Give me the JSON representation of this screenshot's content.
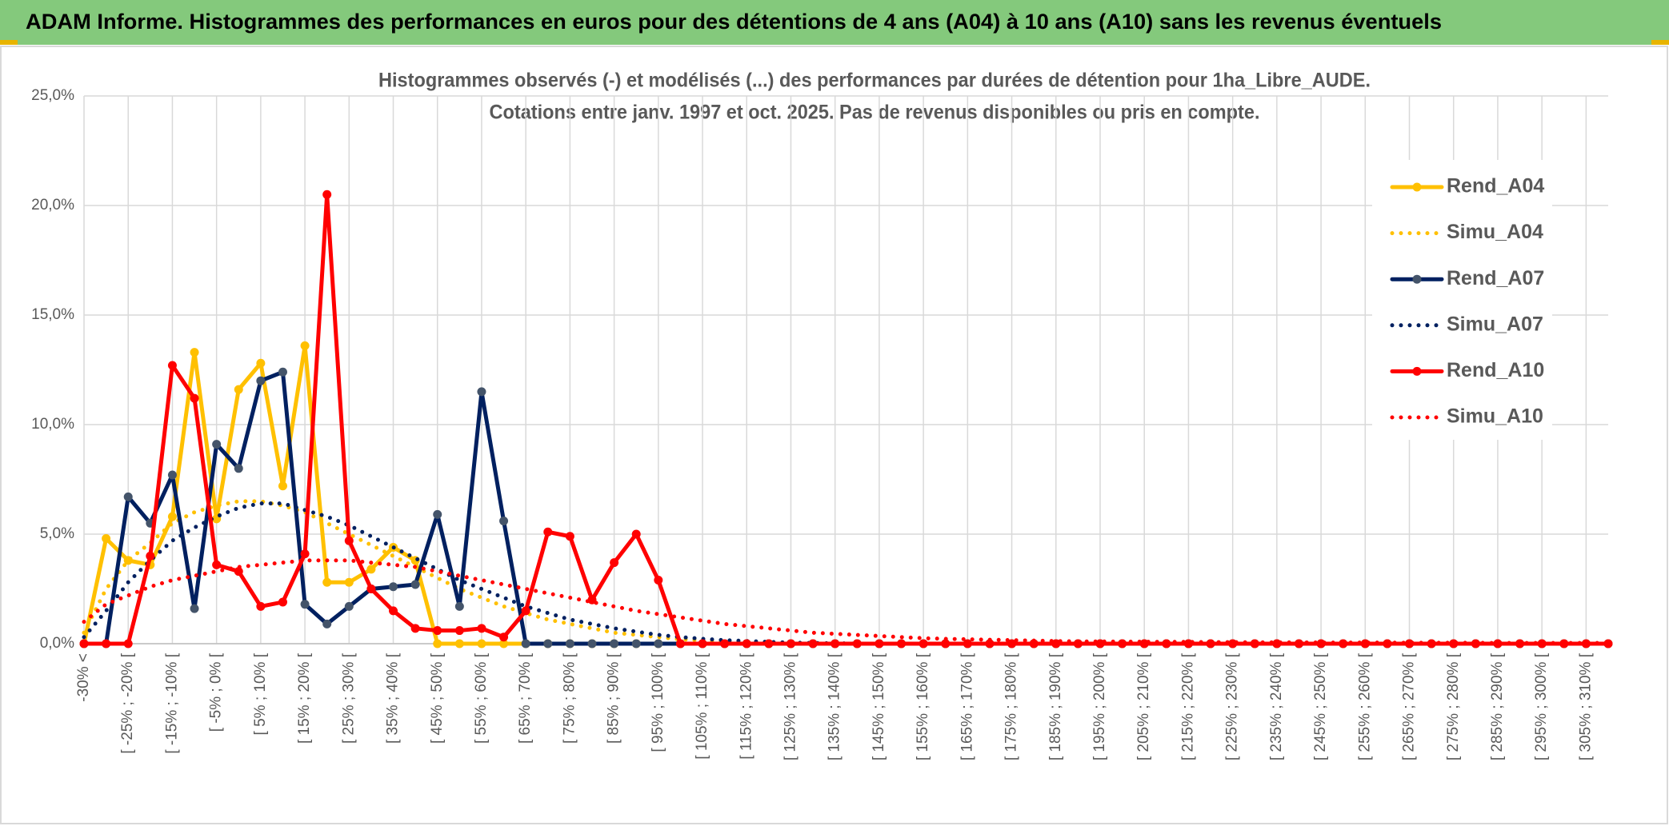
{
  "header": {
    "title": "ADAM Informe. Histogrammes des performances en euros pour des détentions de 4 ans (A04) à 10 ans (A10) sans les revenus éventuels"
  },
  "chart_data": {
    "type": "line",
    "title": "Histogrammes observés (-) et modélisés (...) des performances par durées de détention pour 1ha_Libre_AUDE.",
    "subtitle": "Cotations entre janv. 1997 et oct. 2025. Pas de revenus disponibles ou pris en compte.",
    "categories": [
      "-30% <",
      null,
      "[ -25% ; -20% [",
      null,
      "[ -15% ; -10% [",
      null,
      "[ -5% ; 0% [",
      null,
      "[ 5% ; 10% [",
      null,
      "[ 15% ; 20% [",
      null,
      "[ 25% ; 30% [",
      null,
      "[ 35% ; 40% [",
      null,
      "[ 45% ; 50% [",
      null,
      "[ 55% ; 60% [",
      null,
      "[ 65% ; 70% [",
      null,
      "[ 75% ; 80% [",
      null,
      "[ 85% ; 90% [",
      null,
      "[ 95% ; 100% [",
      null,
      "[ 105% ; 110% [",
      null,
      "[ 115% ; 120% [",
      null,
      "[ 125% ; 130% [",
      null,
      "[ 135% ; 140% [",
      null,
      "[ 145% ; 150% [",
      null,
      "[ 155% ; 160% [",
      null,
      "[ 165% ; 170% [",
      null,
      "[ 175% ; 180% [",
      null,
      "[ 185% ; 190% [",
      null,
      "[ 195% ; 200% [",
      null,
      "[ 205% ; 210% [",
      null,
      "[ 215% ; 220% [",
      null,
      "[ 225% ; 230% [",
      null,
      "[ 235% ; 240% [",
      null,
      "[ 245% ; 250% [",
      null,
      "[ 255% ; 260% [",
      null,
      "[ 265% ; 270% [",
      null,
      "[ 275% ; 280% [",
      null,
      "[ 285% ; 290% [",
      null,
      "[ 295% ; 300% [",
      null,
      "[ 305% ; 310% [",
      null
    ],
    "ylim": [
      0,
      25
    ],
    "yticks": [
      {
        "value": 0,
        "label": "0,0%"
      },
      {
        "value": 5,
        "label": "5,0%"
      },
      {
        "value": 10,
        "label": "10,0%"
      },
      {
        "value": 15,
        "label": "15,0%"
      },
      {
        "value": 20,
        "label": "20,0%"
      },
      {
        "value": 25,
        "label": "25,0%"
      }
    ],
    "grid": true,
    "legend": "right",
    "series": [
      {
        "name": "Rend_A04",
        "color": "#ffc000",
        "marker": true,
        "dash": "solid",
        "values": [
          0,
          4.8,
          3.8,
          3.6,
          5.8,
          13.3,
          5.7,
          11.6,
          12.8,
          7.2,
          13.6,
          2.8,
          2.8,
          3.4,
          4.4,
          3.8,
          0,
          0,
          0,
          0,
          0,
          0,
          0,
          0,
          0,
          0,
          0,
          0,
          0,
          0,
          0,
          0,
          0,
          0,
          0,
          0,
          0,
          0,
          0,
          0,
          0,
          0,
          0,
          0,
          0,
          0,
          0,
          0,
          0,
          0,
          0,
          0,
          0,
          0,
          0,
          0,
          0,
          0,
          0,
          0,
          0,
          0,
          0,
          0,
          0,
          0,
          0,
          0,
          0,
          0
        ]
      },
      {
        "name": "Simu_A04",
        "color": "#ffc000",
        "marker": false,
        "dash": "dotted",
        "values": [
          0.5,
          2.5,
          3.8,
          4.6,
          5.5,
          6.0,
          6.3,
          6.5,
          6.5,
          6.3,
          6.0,
          5.5,
          5.0,
          4.5,
          4.0,
          3.5,
          3.0,
          2.5,
          2.1,
          1.7,
          1.4,
          1.1,
          0.9,
          0.7,
          0.5,
          0.4,
          0.3,
          0.2,
          0.15,
          0.1,
          0.07,
          0.05,
          0.03,
          0.02,
          0.01,
          0,
          0,
          0,
          0,
          0,
          0,
          0,
          0,
          0,
          0,
          0,
          0,
          0,
          0,
          0,
          0,
          0,
          0,
          0,
          0,
          0,
          0,
          0,
          0,
          0,
          0,
          0,
          0,
          0,
          0,
          0,
          0,
          0,
          0,
          0
        ]
      },
      {
        "name": "Rend_A07",
        "color": "#002060",
        "marker": true,
        "dash": "solid",
        "values": [
          0,
          0,
          6.7,
          5.5,
          7.7,
          1.6,
          9.1,
          8.0,
          12.0,
          12.4,
          1.8,
          0.9,
          1.7,
          2.5,
          2.6,
          2.7,
          5.9,
          1.7,
          11.5,
          5.6,
          0,
          0,
          0,
          0,
          0,
          0,
          0,
          0,
          0,
          0,
          0,
          0,
          0,
          0,
          0,
          0,
          0,
          0,
          0,
          0,
          0,
          0,
          0,
          0,
          0,
          0,
          0,
          0,
          0,
          0,
          0,
          0,
          0,
          0,
          0,
          0,
          0,
          0,
          0,
          0,
          0,
          0,
          0,
          0,
          0,
          0,
          0,
          0,
          0,
          0
        ]
      },
      {
        "name": "Simu_A07",
        "color": "#002060",
        "marker": false,
        "dash": "dotted",
        "values": [
          0.3,
          1.5,
          2.8,
          3.8,
          4.7,
          5.3,
          5.8,
          6.2,
          6.4,
          6.4,
          6.1,
          5.8,
          5.4,
          4.9,
          4.4,
          3.9,
          3.4,
          2.9,
          2.5,
          2.1,
          1.7,
          1.4,
          1.1,
          0.9,
          0.7,
          0.55,
          0.4,
          0.3,
          0.22,
          0.16,
          0.12,
          0.08,
          0.05,
          0.03,
          0.02,
          0,
          0,
          0,
          0,
          0,
          0,
          0,
          0,
          0,
          0,
          0,
          0,
          0,
          0,
          0,
          0,
          0,
          0,
          0,
          0,
          0,
          0,
          0,
          0,
          0,
          0,
          0,
          0,
          0,
          0,
          0,
          0,
          0,
          0,
          0
        ]
      },
      {
        "name": "Rend_A10",
        "color": "#ff0000",
        "marker": true,
        "dash": "solid",
        "values": [
          0,
          0,
          0,
          4.0,
          12.7,
          11.2,
          3.6,
          3.3,
          1.7,
          1.9,
          4.1,
          20.5,
          4.7,
          2.5,
          1.5,
          0.7,
          0.6,
          0.6,
          0.7,
          0.3,
          1.5,
          5.1,
          4.9,
          2.0,
          3.7,
          5.0,
          2.9,
          0,
          0,
          0,
          0,
          0,
          0,
          0,
          0,
          0,
          0,
          0,
          0,
          0,
          0,
          0,
          0,
          0,
          0,
          0,
          0,
          0,
          0,
          0,
          0,
          0,
          0,
          0,
          0,
          0,
          0,
          0,
          0,
          0,
          0,
          0,
          0,
          0,
          0,
          0,
          0,
          0,
          0,
          0
        ]
      },
      {
        "name": "Simu_A10",
        "color": "#ff0000",
        "marker": false,
        "dash": "dotted",
        "values": [
          1.0,
          1.8,
          2.2,
          2.6,
          2.9,
          3.1,
          3.3,
          3.5,
          3.6,
          3.7,
          3.8,
          3.8,
          3.8,
          3.7,
          3.6,
          3.5,
          3.3,
          3.1,
          2.9,
          2.7,
          2.5,
          2.3,
          2.1,
          1.9,
          1.7,
          1.5,
          1.35,
          1.2,
          1.05,
          0.9,
          0.8,
          0.7,
          0.6,
          0.5,
          0.45,
          0.4,
          0.35,
          0.3,
          0.25,
          0.22,
          0.2,
          0.18,
          0.16,
          0.14,
          0.12,
          0.1,
          0.1,
          0.09,
          0.09,
          0.08,
          0.08,
          0.07,
          0.07,
          0.06,
          0.06,
          0.06,
          0.05,
          0.05,
          0.05,
          0.05,
          0.04,
          0.04,
          0.04,
          0.04,
          0.03,
          0.03,
          0.03,
          0.03,
          0.03,
          0.03
        ]
      }
    ]
  }
}
